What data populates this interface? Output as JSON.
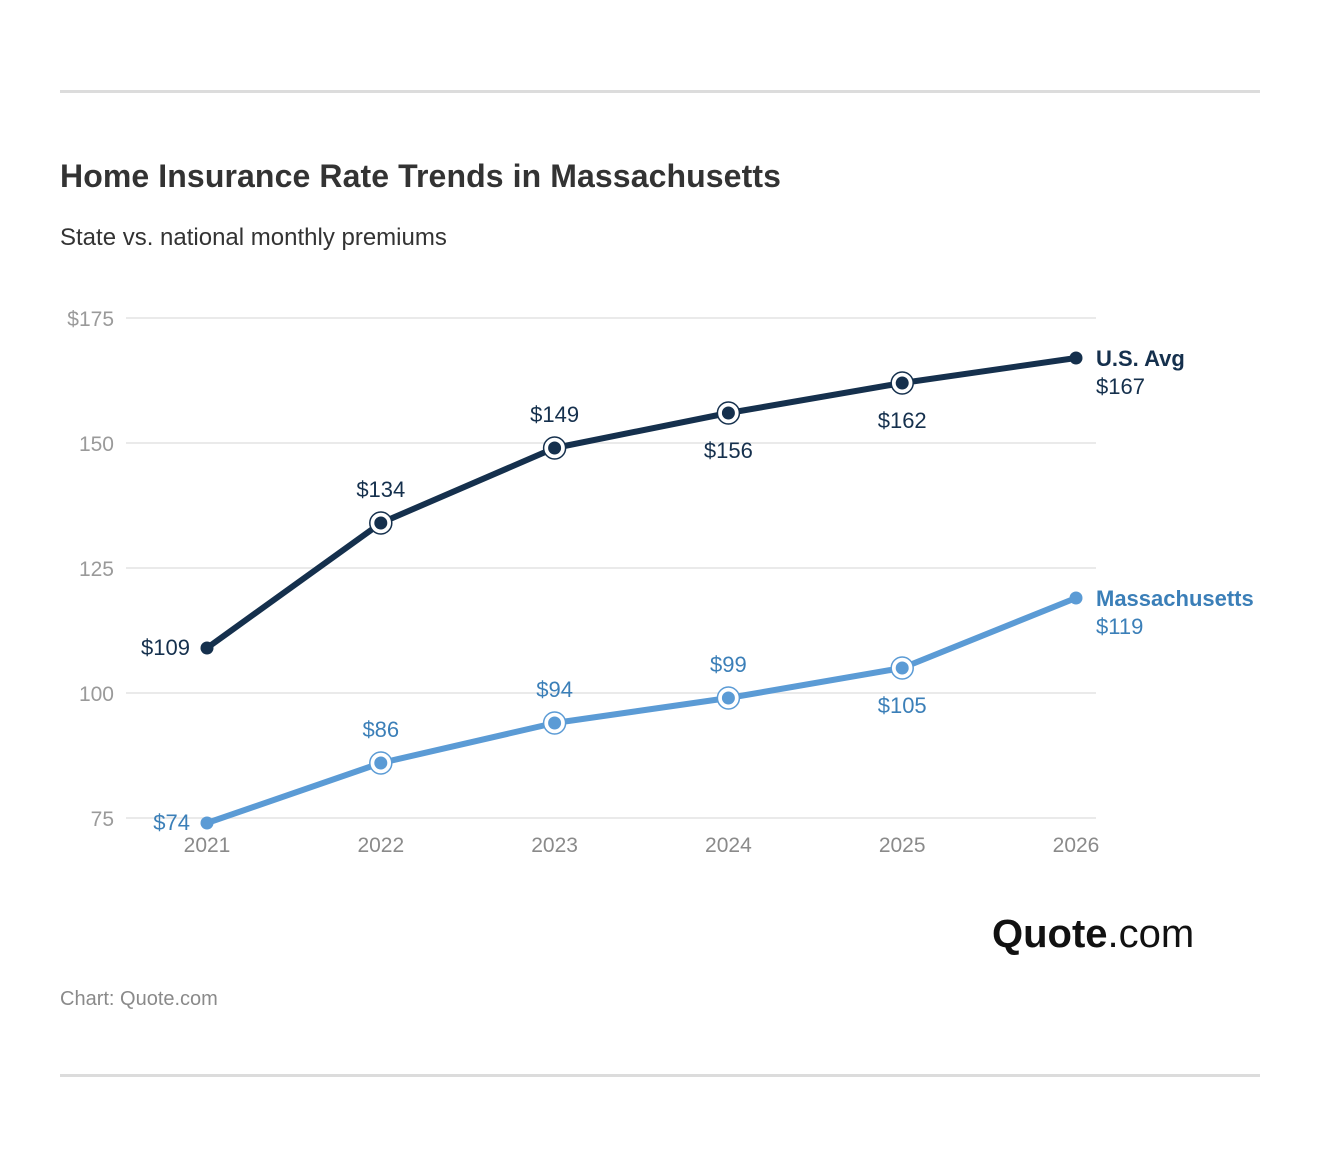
{
  "header": {
    "title": "Home Insurance Rate Trends in Massachusetts",
    "subtitle": "State vs. national monthly premiums"
  },
  "footer": {
    "source": "Chart: Quote.com",
    "logo_strong": "Quote",
    "logo_light": ".com"
  },
  "colors": {
    "us_avg": "#15304d",
    "massachusetts": "#5b9bd5",
    "massachusetts_text": "#3b7fb8",
    "grid": "#e3e3e3",
    "axis_text": "#9a9a9a"
  },
  "chart_data": {
    "type": "line",
    "x": [
      "2021",
      "2022",
      "2023",
      "2024",
      "2025",
      "2026"
    ],
    "ylim": [
      75,
      175
    ],
    "yticks": [
      {
        "value": 175,
        "label": "$175"
      },
      {
        "value": 150,
        "label": "150"
      },
      {
        "value": 125,
        "label": "125"
      },
      {
        "value": 100,
        "label": "100"
      },
      {
        "value": 75,
        "label": "75"
      }
    ],
    "series": [
      {
        "name": "U.S. Avg",
        "values": [
          109,
          134,
          149,
          156,
          162,
          167
        ],
        "labels": [
          "$109",
          "$134",
          "$149",
          "$156",
          "$162",
          "$167"
        ],
        "label_position": [
          "left",
          "above",
          "above",
          "below",
          "below",
          "end"
        ]
      },
      {
        "name": "Massachusetts",
        "values": [
          74,
          86,
          94,
          99,
          105,
          119
        ],
        "labels": [
          "$74",
          "$86",
          "$94",
          "$99",
          "$105",
          "$119"
        ],
        "label_position": [
          "left",
          "above",
          "above",
          "above",
          "below",
          "end"
        ]
      }
    ],
    "grid": true,
    "legend": "end-of-line labels"
  }
}
